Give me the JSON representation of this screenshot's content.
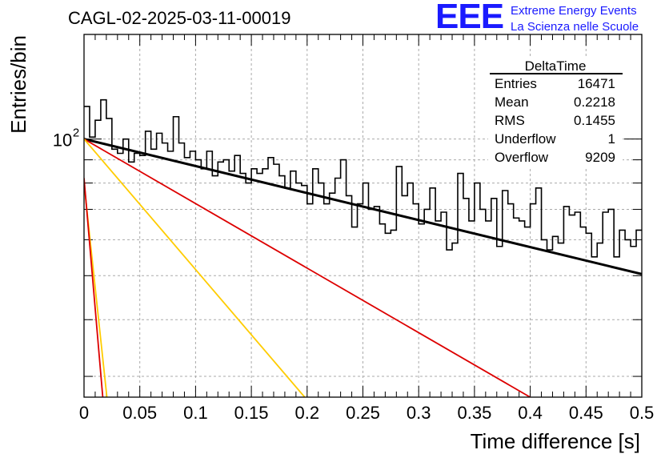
{
  "header": {
    "title": "CAGL-02-2025-03-11-00019",
    "logo_text": "EEE",
    "logo_line1": "Extreme Energy Events",
    "logo_line2": "La Scienza nelle Scuole"
  },
  "stats_box": {
    "title": "DeltaTime",
    "rows": [
      {
        "label": "Entries",
        "value": "16471"
      },
      {
        "label": "Mean",
        "value": "0.2218"
      },
      {
        "label": "RMS",
        "value": "0.1455"
      },
      {
        "label": "Underflow",
        "value": "1"
      },
      {
        "label": "Overflow",
        "value": "9209"
      }
    ]
  },
  "colors": {
    "histogram": "#000000",
    "fit_total": "#000000",
    "component_red": "#dd0000",
    "component_orange": "#ffcc00",
    "grid": "#aaaaaa",
    "logo": "#1a1aff"
  },
  "chart_data": {
    "type": "line",
    "title": "CAGL-02-2025-03-11-00019",
    "xlabel": "Time difference [s]",
    "ylabel": "Entries/bin",
    "xlim": [
      0,
      0.5
    ],
    "ylim": [
      27,
      170
    ],
    "yscale": "log",
    "grid": true,
    "x_ticks": [
      "0",
      "0.05",
      "0.1",
      "0.15",
      "0.2",
      "0.25",
      "0.3",
      "0.35",
      "0.4",
      "0.45",
      "0.5"
    ],
    "y_tick_label": {
      "value": 100,
      "mantissa": "10",
      "exponent": "2"
    },
    "histogram": {
      "bin_width": 0.005,
      "values": [
        118,
        101,
        110,
        122,
        111,
        95,
        93,
        100,
        89,
        93,
        92,
        104,
        95,
        103,
        98,
        94,
        112,
        98,
        91,
        94,
        90,
        86,
        94,
        83,
        89,
        90,
        85,
        92,
        84,
        80,
        86,
        84,
        86,
        91,
        88,
        83,
        78,
        85,
        80,
        79,
        72,
        86,
        80,
        72,
        76,
        82,
        90,
        75,
        64,
        72,
        80,
        70,
        71,
        65,
        62,
        63,
        87,
        75,
        80,
        72,
        65,
        70,
        78,
        66,
        69,
        57,
        59,
        84,
        74,
        66,
        80,
        70,
        66,
        74,
        58,
        77,
        72,
        67,
        66,
        64,
        72,
        78,
        60,
        57,
        61,
        59,
        71,
        68,
        69,
        64,
        62,
        55,
        59,
        69,
        70,
        55,
        63,
        60,
        58,
        63
      ]
    },
    "series": [
      {
        "name": "",
        "kind": "fit_total",
        "x": [
          0,
          0.5
        ],
        "y": [
          100,
          50.4
        ]
      },
      {
        "name": "",
        "kind": "component_red",
        "x": [
          0,
          0.3999
        ],
        "y": [
          100,
          27
        ]
      },
      {
        "name": "",
        "kind": "component_orange",
        "x": [
          0,
          0.1978
        ],
        "y": [
          100,
          27
        ]
      },
      {
        "name": "",
        "kind": "component_orange",
        "x": [
          0,
          0.0205
        ],
        "y": [
          80,
          27
        ]
      },
      {
        "name": "",
        "kind": "component_red",
        "x": [
          0,
          0.0168
        ],
        "y": [
          82,
          27
        ]
      }
    ]
  }
}
